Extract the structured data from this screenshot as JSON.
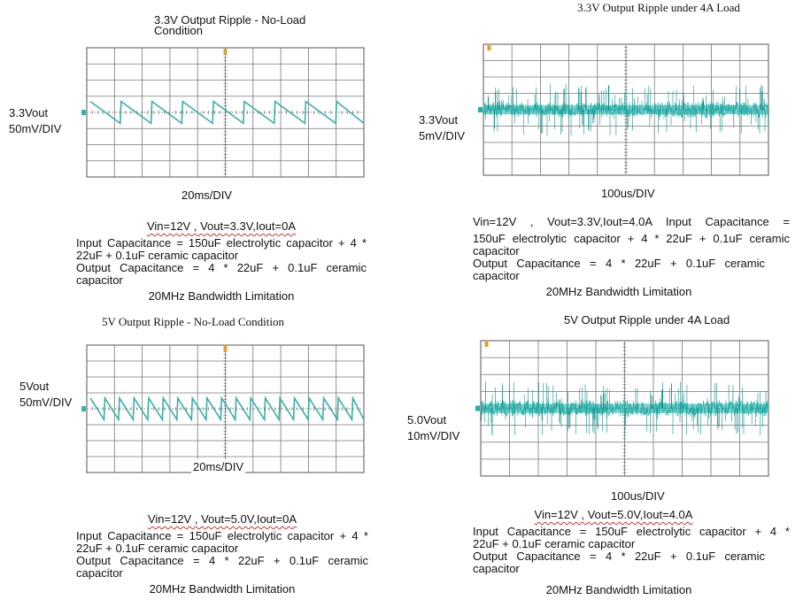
{
  "chart_data": [
    {
      "type": "line",
      "title_line1": "3.3V Output Ripple - No-Load",
      "title_line2": "Condition",
      "ylabel_line1": "3.3Vout",
      "ylabel_line2": "50mV/DIV",
      "xlabel": "20ms/DIV",
      "waveform": "sawtooth",
      "cycles": 9,
      "cond_vin": "Vin=12V ,  Vout=3.3V,Iout=0A",
      "cond_in1": "Input Capacitance = 150uF electrolytic capacitor + 4 *",
      "cond_in2": "22uF + 0.1uF ceramic capacitor",
      "cond_out1": "Output Capacitance = 4 * 22uF + 0.1uF ceramic",
      "cond_out2": "capacitor",
      "bandwidth": "20MHz Bandwidth Limitation",
      "trace_color": "#3aaea8"
    },
    {
      "type": "line",
      "title_line1": "3.3V Output Ripple under 4A Load",
      "ylabel_line1": "3.3Vout",
      "ylabel_line2": "5mV/DIV",
      "xlabel": "100us/DIV",
      "waveform": "noise",
      "cond_vin": "Vin=12V ,  Vout=3.3V,Iout=4.0A   Input Capacitance =",
      "cond_in1": "150uF electrolytic capacitor + 4 * 22uF + 0.1uF ceramic",
      "cond_in2": "capacitor",
      "cond_out1": "Output Capacitance = 4 * 22uF + 0.1uF ceramic",
      "cond_out2": "capacitor",
      "bandwidth": "20MHz Bandwidth Limitation",
      "trace_color": "#1fb0a8"
    },
    {
      "type": "line",
      "title_line1": "5V Output Ripple - No-Load Condition",
      "ylabel_line1": "5Vout",
      "ylabel_line2": "50mV/DIV",
      "xlabel": "20ms/DIV",
      "waveform": "sawtooth",
      "cycles": 19,
      "cond_vin": "Vin=12V ,  Vout=5.0V,Iout=0A",
      "cond_in1": "Input Capacitance = 150uF electrolytic capacitor + 4 *",
      "cond_in2": "22uF + 0.1uF ceramic capacitor",
      "cond_out1": "Output Capacitance = 4 * 22uF + 0.1uF ceramic",
      "cond_out2": "capacitor",
      "bandwidth": "20MHz Bandwidth Limitation",
      "trace_color": "#3aaea8"
    },
    {
      "type": "line",
      "title_line1": "5V Output Ripple under 4A Load",
      "ylabel_line1": "5.0Vout",
      "ylabel_line2": "10mV/DIV",
      "xlabel": "100us/DIV",
      "waveform": "noise",
      "cond_vin": "Vin=12V ,  Vout=5.0V,Iout=4.0A",
      "cond_in1": "Input Capacitance = 150uF electrolytic capacitor + 4 *",
      "cond_in2": "22uF + 0.1uF ceramic capacitor",
      "cond_out1": "Output Capacitance = 4 * 22uF + 0.1uF ceramic",
      "cond_out2": "capacitor",
      "bandwidth": "20MHz Bandwidth Limitation",
      "trace_color": "#1fb0a8"
    }
  ]
}
